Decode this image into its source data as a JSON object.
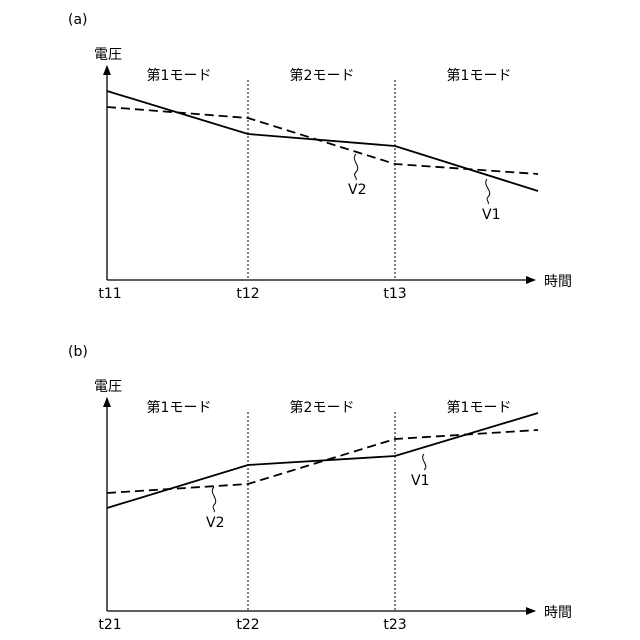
{
  "panels": [
    {
      "panel_label": "(a)",
      "y_axis_label": "電圧",
      "x_axis_label": "時間",
      "time_labels": [
        "t11",
        "t12",
        "t13"
      ],
      "mode_labels": [
        "第1モード",
        "第2モード",
        "第1モード"
      ],
      "series_labels": {
        "V1": "V1",
        "V2": "V2"
      }
    },
    {
      "panel_label": "(b)",
      "y_axis_label": "電圧",
      "x_axis_label": "時間",
      "time_labels": [
        "t21",
        "t22",
        "t23"
      ],
      "mode_labels": [
        "第1モード",
        "第2モード",
        "第1モード"
      ],
      "series_labels": {
        "V1": "V1",
        "V2": "V2"
      }
    }
  ]
}
